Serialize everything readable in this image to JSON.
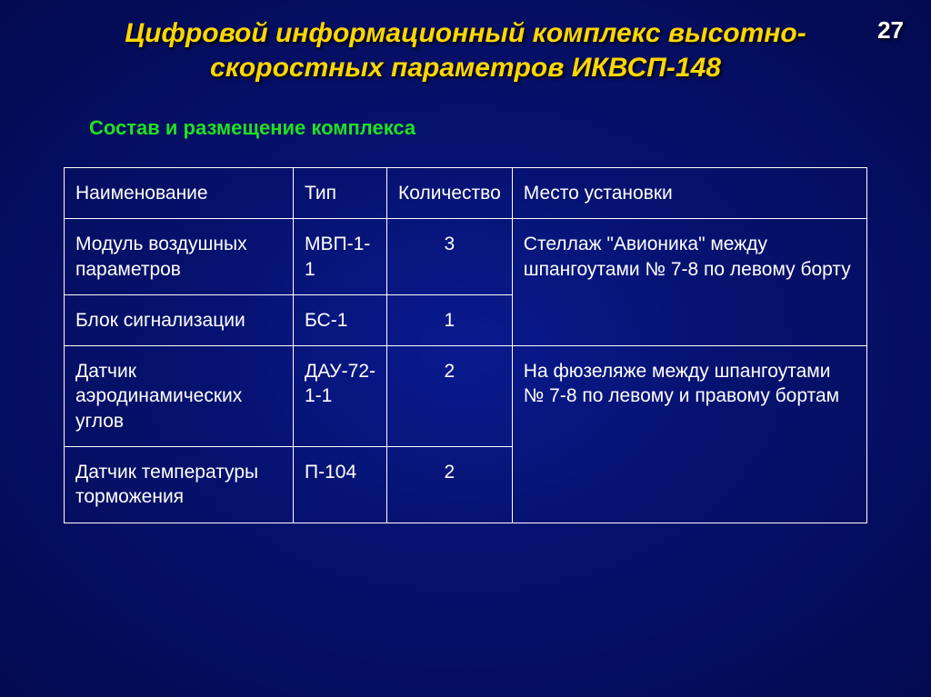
{
  "page_number": "27",
  "title_line1": "Цифровой информационный комплекс высотно-",
  "title_line2": "скоростных параметров ИКВСП-148",
  "subtitle": "Состав и размещение комплекса",
  "table": {
    "headers": {
      "name": "Наименование",
      "type": "Тип",
      "qty": "Количество",
      "location": "Место установки"
    },
    "rows": {
      "r1": {
        "name": "Модуль воздушных параметров",
        "type": "МВП-1-1",
        "qty": "3"
      },
      "merged_loc_1": "Стеллаж \"Авионика\" между шпангоутами № 7-8 по левому борту",
      "r2": {
        "name": "Блок сигнализации",
        "type": "БС-1",
        "qty": "1"
      },
      "r3": {
        "name": "Датчик аэродинамических углов",
        "type": "ДАУ-72-1-1",
        "qty": "2"
      },
      "merged_loc_2": "На фюзеляже между шпангоутами № 7-8 по левому и правому бортам",
      "r4": {
        "name": "Датчик температуры торможения",
        "type": "П-104",
        "qty": "2"
      }
    }
  },
  "colors": {
    "title_color": "#ffd700",
    "subtitle_color": "#20e020",
    "text_color": "#ffffff",
    "border_color": "#ffffff",
    "bg_center": "#0a1a8f",
    "bg_outer": "#030a50"
  },
  "fonts": {
    "title_size": 30,
    "subtitle_size": 22,
    "cell_size": 21,
    "page_num_size": 26
  }
}
